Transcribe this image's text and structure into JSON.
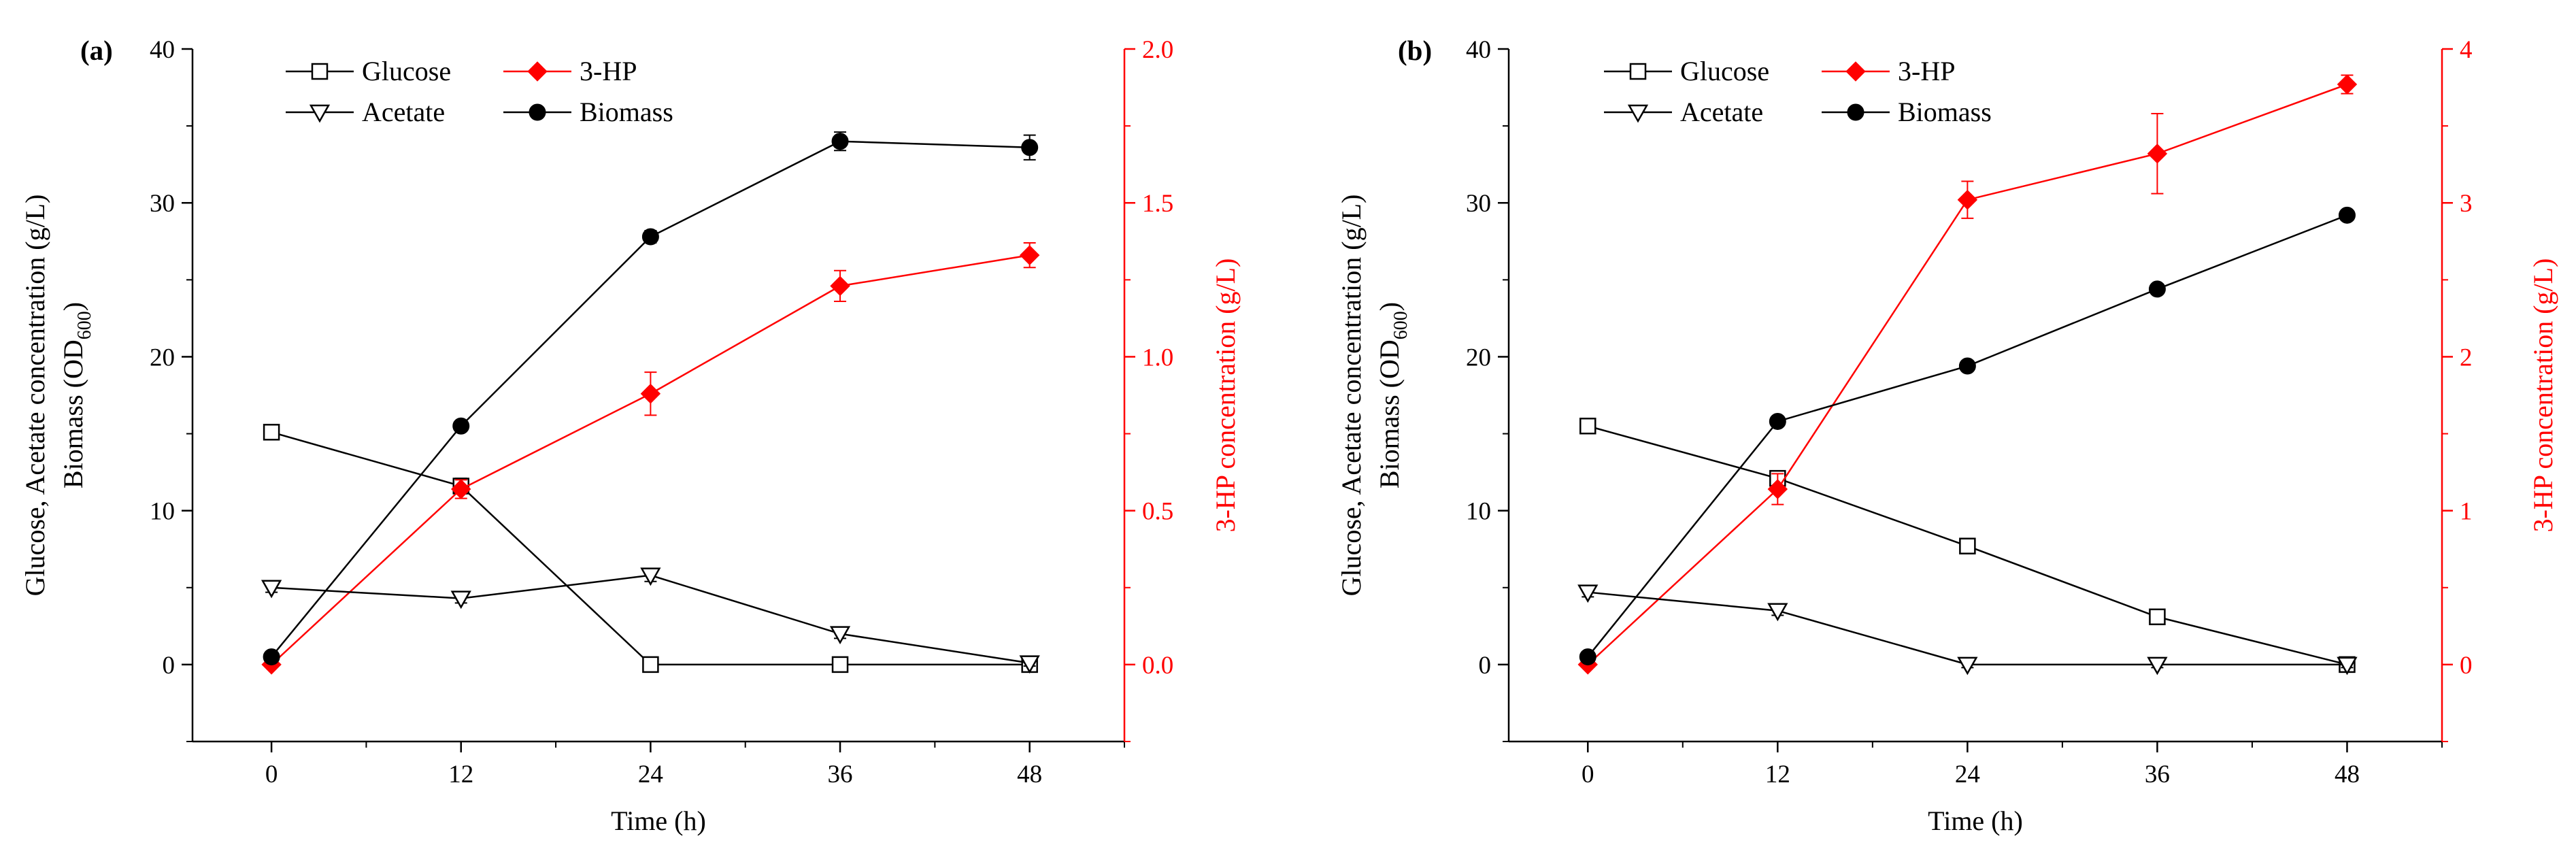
{
  "chart_data": [
    {
      "type": "line",
      "panel": "(a)",
      "x_label": "Time (h)",
      "x_ticks": [
        "0",
        "12",
        "24",
        "36",
        "48"
      ],
      "x_values": [
        0,
        12,
        24,
        36,
        48
      ],
      "xlim": [
        -5,
        54
      ],
      "y_label_parts": [
        "Glucose, Acetate concentration (g/L)",
        "Biomass (OD",
        "600",
        ")"
      ],
      "y_ticks": [
        "0",
        "10",
        "20",
        "30",
        "40"
      ],
      "ylim": [
        -5,
        40
      ],
      "y2_label": "3-HP concentration (g/L)",
      "y2_ticks": [
        "0.0",
        "0.5",
        "1.0",
        "1.5",
        "2.0"
      ],
      "y2lim": [
        -0.25,
        2.0
      ],
      "series": [
        {
          "name": "Glucose",
          "axis": "left",
          "marker": "square",
          "color": "#000000",
          "values": [
            15.1,
            11.6,
            0,
            0,
            0
          ],
          "err": [
            0.3,
            0.5,
            0.2,
            0.2,
            0.2
          ]
        },
        {
          "name": "3-HP",
          "axis": "right",
          "marker": "diamond",
          "color": "#ff0000",
          "values": [
            0.0,
            0.57,
            0.88,
            1.23,
            1.33
          ],
          "err": [
            0.01,
            0.03,
            0.07,
            0.05,
            0.04
          ]
        },
        {
          "name": "Acetate",
          "axis": "left",
          "marker": "triangle",
          "color": "#000000",
          "values": [
            5.0,
            4.3,
            5.8,
            2.0,
            0.1
          ],
          "err": [
            0.3,
            0.3,
            0.4,
            0.3,
            0.2
          ]
        },
        {
          "name": "Biomass",
          "axis": "left",
          "marker": "circle",
          "color": "#000000",
          "values": [
            0.5,
            15.5,
            27.8,
            34.0,
            33.6
          ],
          "err": [
            0.2,
            0.3,
            0.4,
            0.6,
            0.8
          ]
        }
      ]
    },
    {
      "type": "line",
      "panel": "(b)",
      "x_label": "Time (h)",
      "x_ticks": [
        "0",
        "12",
        "24",
        "36",
        "48"
      ],
      "x_values": [
        0,
        12,
        24,
        36,
        48
      ],
      "xlim": [
        -5,
        54
      ],
      "y_label_parts": [
        "Glucose, Acetate concentration (g/L)",
        "Biomass (OD",
        "600",
        ")"
      ],
      "y_ticks": [
        "0",
        "10",
        "20",
        "30",
        "40"
      ],
      "ylim": [
        -5,
        40
      ],
      "y2_label": "3-HP concentration (g/L)",
      "y2_ticks": [
        "0",
        "1",
        "2",
        "3",
        "4"
      ],
      "y2lim": [
        -0.5,
        4.0
      ],
      "series": [
        {
          "name": "Glucose",
          "axis": "left",
          "marker": "square",
          "color": "#000000",
          "values": [
            15.5,
            12.1,
            7.7,
            3.1,
            0
          ],
          "err": [
            0.3,
            0.3,
            0.3,
            0.3,
            0.2
          ]
        },
        {
          "name": "3-HP",
          "axis": "right",
          "marker": "diamond",
          "color": "#ff0000",
          "values": [
            0.0,
            1.14,
            3.02,
            3.32,
            3.77
          ],
          "err": [
            0.02,
            0.1,
            0.12,
            0.26,
            0.06
          ]
        },
        {
          "name": "Acetate",
          "axis": "left",
          "marker": "triangle",
          "color": "#000000",
          "values": [
            4.7,
            3.5,
            0,
            0,
            0
          ],
          "err": [
            0.3,
            0.3,
            0.2,
            0.2,
            0.2
          ]
        },
        {
          "name": "Biomass",
          "axis": "left",
          "marker": "circle",
          "color": "#000000",
          "values": [
            0.5,
            15.8,
            19.4,
            24.4,
            29.2
          ],
          "err": [
            0.2,
            0.3,
            0.3,
            0.3,
            0.3
          ]
        }
      ]
    }
  ]
}
